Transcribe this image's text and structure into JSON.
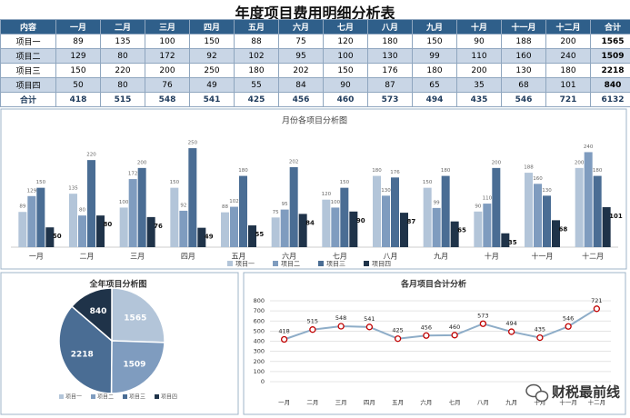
{
  "title": "年度项目费用明细分析表",
  "table": {
    "header": [
      "内容",
      "一月",
      "二月",
      "三月",
      "四月",
      "五月",
      "六月",
      "七月",
      "八月",
      "九月",
      "十月",
      "十一月",
      "十二月",
      "合计"
    ],
    "rows": [
      [
        "项目一",
        89,
        135,
        100,
        150,
        88,
        75,
        120,
        180,
        150,
        90,
        188,
        200,
        1565
      ],
      [
        "项目二",
        129,
        80,
        172,
        92,
        102,
        95,
        100,
        130,
        99,
        110,
        160,
        240,
        1509
      ],
      [
        "项目三",
        150,
        220,
        200,
        250,
        180,
        202,
        150,
        176,
        180,
        200,
        130,
        180,
        2218
      ],
      [
        "项目四",
        50,
        80,
        76,
        49,
        55,
        84,
        90,
        87,
        65,
        35,
        68,
        101,
        840
      ],
      [
        "合计",
        418,
        515,
        548,
        541,
        425,
        456,
        460,
        573,
        494,
        435,
        546,
        721,
        6132
      ]
    ]
  },
  "chart_data": [
    {
      "type": "bar",
      "title": "月份各项目分析图",
      "categories": [
        "一月",
        "二月",
        "三月",
        "四月",
        "五月",
        "六月",
        "七月",
        "八月",
        "九月",
        "十月",
        "十一月",
        "十二月"
      ],
      "series": [
        {
          "name": "项目一",
          "color": "#b3c5d9",
          "values": [
            89,
            135,
            100,
            150,
            88,
            75,
            120,
            180,
            150,
            90,
            188,
            200
          ]
        },
        {
          "name": "项目二",
          "color": "#7f9cbf",
          "values": [
            129,
            80,
            172,
            92,
            102,
            95,
            100,
            130,
            99,
            110,
            160,
            240
          ]
        },
        {
          "name": "项目三",
          "color": "#4a6d94",
          "values": [
            150,
            220,
            200,
            250,
            180,
            202,
            150,
            176,
            180,
            200,
            130,
            180
          ]
        },
        {
          "name": "项目四",
          "color": "#1f3349",
          "values": [
            50,
            80,
            76,
            49,
            55,
            84,
            90,
            87,
            65,
            35,
            68,
            101
          ]
        }
      ],
      "ylim": [
        0,
        280
      ],
      "legend": "bottom"
    },
    {
      "type": "pie",
      "title": "全年项目分析图",
      "categories": [
        "项目一",
        "项目二",
        "项目三",
        "项目四"
      ],
      "values": [
        1565,
        1509,
        2218,
        840
      ],
      "colors": [
        "#b3c5d9",
        "#7f9cbf",
        "#4a6d94",
        "#1f3349"
      ],
      "legend": "bottom"
    },
    {
      "type": "line",
      "title": "各月项目合计分析",
      "categories": [
        "一月",
        "二月",
        "三月",
        "四月",
        "五月",
        "六月",
        "七月",
        "八月",
        "九月",
        "十月",
        "十一月",
        "十二月"
      ],
      "values": [
        418,
        515,
        548,
        541,
        425,
        456,
        460,
        573,
        494,
        435,
        546,
        721
      ],
      "color": "#8eadc8",
      "marker_color": "#c00000",
      "ylim": [
        0,
        800
      ],
      "yticks": [
        0,
        100,
        200,
        300,
        400,
        500,
        600,
        700,
        800
      ],
      "grid": true
    }
  ],
  "watermark": "财税最前线"
}
